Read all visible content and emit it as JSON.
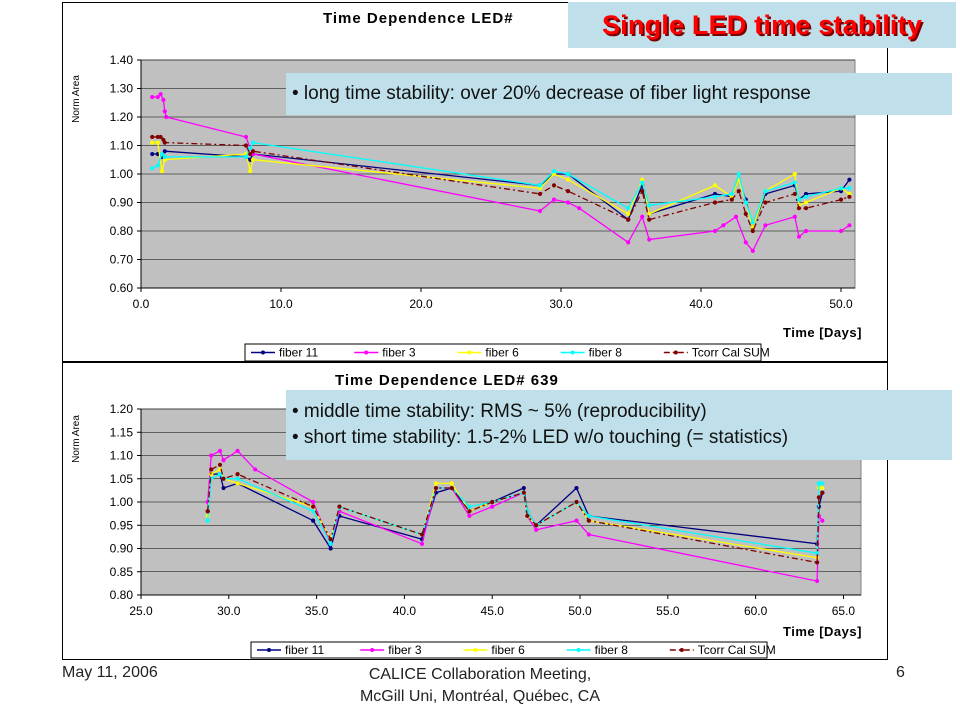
{
  "slide": {
    "banner": "Single LED time stability",
    "notes_top": [
      "• long time stability: over 20% decrease of fiber light response"
    ],
    "notes_bottom": [
      "• middle time stability: RMS ~ 5% (reproducibility)",
      "• short time stability: 1.5-2% LED w/o touching (= statistics)"
    ],
    "footer_left": "May 11, 2006",
    "footer_center_1": "CALICE Collaboration Meeting,",
    "footer_center_2": "McGill Uni,  Montréal, Québec, CA",
    "page_number": "6"
  },
  "chart_data": [
    {
      "type": "line",
      "title": "Time Dependence LED#",
      "xlabel": "Time [Days]",
      "ylabel": "Norm Area",
      "xlim": [
        0,
        51
      ],
      "ylim": [
        0.6,
        1.4
      ],
      "xticks": [
        "0.0",
        "10.0",
        "20.0",
        "30.0",
        "40.0",
        "50.0"
      ],
      "xtick_values": [
        0,
        10,
        20,
        30,
        40,
        50
      ],
      "yticks": [
        "0.60",
        "0.70",
        "0.80",
        "0.90",
        "1.00",
        "1.10",
        "1.20",
        "1.30",
        "1.40"
      ],
      "ytick_values": [
        0.6,
        0.7,
        0.8,
        0.9,
        1.0,
        1.1,
        1.2,
        1.3,
        1.4
      ],
      "plot_bg": "#c0c0c0",
      "grid": true,
      "legend_position": "bottom",
      "series": [
        {
          "name": "fiber 11",
          "color": "#000080",
          "dash": "",
          "points": [
            [
              0.8,
              1.07
            ],
            [
              1.2,
              1.07
            ],
            [
              1.5,
              1.06
            ],
            [
              1.7,
              1.08
            ],
            [
              7.5,
              1.06
            ],
            [
              7.8,
              1.05
            ],
            [
              8,
              1.07
            ],
            [
              28.5,
              0.96
            ],
            [
              29.5,
              1.0
            ],
            [
              30.5,
              1.0
            ],
            [
              34.8,
              0.84
            ],
            [
              35.8,
              0.96
            ],
            [
              36.3,
              0.86
            ],
            [
              41,
              0.93
            ],
            [
              42.2,
              0.92
            ],
            [
              42.7,
              0.98
            ],
            [
              43.2,
              0.91
            ],
            [
              43.7,
              0.81
            ],
            [
              44.6,
              0.93
            ],
            [
              46.7,
              0.96
            ],
            [
              47,
              0.91
            ],
            [
              47.5,
              0.93
            ],
            [
              50,
              0.94
            ],
            [
              50.6,
              0.98
            ]
          ]
        },
        {
          "name": "fiber 3",
          "color": "#ff00ff",
          "dash": "",
          "points": [
            [
              0.8,
              1.27
            ],
            [
              1.2,
              1.27
            ],
            [
              1.4,
              1.28
            ],
            [
              1.6,
              1.26
            ],
            [
              1.7,
              1.22
            ],
            [
              1.8,
              1.2
            ],
            [
              7.5,
              1.13
            ],
            [
              7.8,
              1.09
            ],
            [
              8,
              1.07
            ],
            [
              28.5,
              0.87
            ],
            [
              29.5,
              0.91
            ],
            [
              30.5,
              0.9
            ],
            [
              31.3,
              0.88
            ],
            [
              34.8,
              0.76
            ],
            [
              35.8,
              0.85
            ],
            [
              36.3,
              0.77
            ],
            [
              41,
              0.8
            ],
            [
              41.6,
              0.82
            ],
            [
              42.5,
              0.85
            ],
            [
              43.2,
              0.76
            ],
            [
              43.7,
              0.73
            ],
            [
              44.6,
              0.82
            ],
            [
              46.7,
              0.85
            ],
            [
              47,
              0.78
            ],
            [
              47.5,
              0.8
            ],
            [
              50,
              0.8
            ],
            [
              50.6,
              0.82
            ]
          ]
        },
        {
          "name": "fiber 6",
          "color": "#ffff00",
          "dash": "",
          "points": [
            [
              0.8,
              1.11
            ],
            [
              1.2,
              1.11
            ],
            [
              1.5,
              1.01
            ],
            [
              1.7,
              1.05
            ],
            [
              7.5,
              1.07
            ],
            [
              7.8,
              1.01
            ],
            [
              8,
              1.05
            ],
            [
              28.5,
              0.95
            ],
            [
              29.5,
              1.0
            ],
            [
              30.5,
              0.98
            ],
            [
              34.8,
              0.86
            ],
            [
              35.8,
              0.98
            ],
            [
              36.3,
              0.86
            ],
            [
              41,
              0.96
            ],
            [
              42.2,
              0.92
            ],
            [
              42.7,
              0.98
            ],
            [
              43.2,
              0.9
            ],
            [
              43.7,
              0.81
            ],
            [
              44.6,
              0.94
            ],
            [
              46.7,
              1.0
            ],
            [
              47,
              0.89
            ],
            [
              47.5,
              0.9
            ],
            [
              50,
              0.95
            ],
            [
              50.6,
              0.93
            ]
          ]
        },
        {
          "name": "fiber 8",
          "color": "#00ffff",
          "dash": "",
          "points": [
            [
              0.8,
              1.02
            ],
            [
              1.2,
              1.03
            ],
            [
              1.5,
              1.07
            ],
            [
              1.7,
              1.06
            ],
            [
              7.5,
              1.06
            ],
            [
              7.8,
              1.09
            ],
            [
              8,
              1.11
            ],
            [
              28.5,
              0.96
            ],
            [
              29.5,
              1.01
            ],
            [
              30.5,
              1.0
            ],
            [
              34.8,
              0.88
            ],
            [
              35.8,
              0.97
            ],
            [
              36.3,
              0.89
            ],
            [
              41,
              0.92
            ],
            [
              42.2,
              0.93
            ],
            [
              42.7,
              1.0
            ],
            [
              43.2,
              0.9
            ],
            [
              43.7,
              0.83
            ],
            [
              44.6,
              0.94
            ],
            [
              46.7,
              0.97
            ],
            [
              47,
              0.91
            ],
            [
              47.5,
              0.92
            ],
            [
              50,
              0.95
            ],
            [
              50.6,
              0.95
            ]
          ]
        },
        {
          "name": "Tcorr Cal SUM",
          "color": "#800000",
          "dash": "6 3 2 3",
          "points": [
            [
              0.8,
              1.13
            ],
            [
              1.2,
              1.13
            ],
            [
              1.4,
              1.13
            ],
            [
              1.6,
              1.12
            ],
            [
              1.7,
              1.11
            ],
            [
              7.5,
              1.1
            ],
            [
              7.8,
              1.07
            ],
            [
              8,
              1.08
            ],
            [
              28.5,
              0.93
            ],
            [
              29.5,
              0.96
            ],
            [
              30.5,
              0.94
            ],
            [
              34.8,
              0.84
            ],
            [
              35.8,
              0.94
            ],
            [
              36.3,
              0.84
            ],
            [
              41,
              0.9
            ],
            [
              42.2,
              0.91
            ],
            [
              42.7,
              0.94
            ],
            [
              43.2,
              0.86
            ],
            [
              43.7,
              0.8
            ],
            [
              44.6,
              0.9
            ],
            [
              46.7,
              0.93
            ],
            [
              47,
              0.88
            ],
            [
              47.5,
              0.88
            ],
            [
              50,
              0.91
            ],
            [
              50.6,
              0.92
            ]
          ]
        }
      ]
    },
    {
      "type": "line",
      "title": "Time Dependence LED# 639",
      "xlabel": "Time [Days]",
      "ylabel": "Norm Area",
      "xlim": [
        25,
        66
      ],
      "ylim": [
        0.8,
        1.2
      ],
      "xticks": [
        "25.0",
        "30.0",
        "35.0",
        "40.0",
        "45.0",
        "50.0",
        "55.0",
        "60.0",
        "65.0"
      ],
      "xtick_values": [
        25,
        30,
        35,
        40,
        45,
        50,
        55,
        60,
        65
      ],
      "yticks": [
        "0.80",
        "0.85",
        "0.90",
        "0.95",
        "1.00",
        "1.05",
        "1.10",
        "1.15",
        "1.20"
      ],
      "ytick_values": [
        0.8,
        0.85,
        0.9,
        0.95,
        1.0,
        1.05,
        1.1,
        1.15,
        1.2
      ],
      "plot_bg": "#c0c0c0",
      "grid": true,
      "legend_position": "bottom",
      "series": [
        {
          "name": "fiber 11",
          "color": "#000080",
          "dash": "",
          "points": [
            [
              28.8,
              0.98
            ],
            [
              29,
              1.06
            ],
            [
              29.5,
              1.06
            ],
            [
              29.7,
              1.03
            ],
            [
              30.5,
              1.04
            ],
            [
              34.8,
              0.96
            ],
            [
              35.8,
              0.9
            ],
            [
              36.3,
              0.97
            ],
            [
              41,
              0.92
            ],
            [
              41.8,
              1.02
            ],
            [
              42.7,
              1.03
            ],
            [
              43.7,
              0.98
            ],
            [
              45,
              1.0
            ],
            [
              46.8,
              1.03
            ],
            [
              47,
              0.98
            ],
            [
              47.5,
              0.95
            ],
            [
              49.8,
              1.03
            ],
            [
              50.5,
              0.97
            ],
            [
              63.5,
              0.91
            ],
            [
              63.6,
              0.99
            ],
            [
              63.8,
              1.02
            ]
          ]
        },
        {
          "name": "fiber 3",
          "color": "#ff00ff",
          "dash": "",
          "points": [
            [
              28.8,
              1.0
            ],
            [
              29,
              1.1
            ],
            [
              29.5,
              1.11
            ],
            [
              29.7,
              1.09
            ],
            [
              30.5,
              1.11
            ],
            [
              31.5,
              1.07
            ],
            [
              34.8,
              1.0
            ],
            [
              35.8,
              0.91
            ],
            [
              36.3,
              0.98
            ],
            [
              41,
              0.91
            ],
            [
              41.8,
              1.03
            ],
            [
              42.7,
              1.03
            ],
            [
              43.7,
              0.97
            ],
            [
              45,
              0.99
            ],
            [
              46.8,
              1.02
            ],
            [
              47,
              0.97
            ],
            [
              47.5,
              0.94
            ],
            [
              49.8,
              0.96
            ],
            [
              50.5,
              0.93
            ],
            [
              63.5,
              0.83
            ],
            [
              63.6,
              0.97
            ],
            [
              63.8,
              0.96
            ]
          ]
        },
        {
          "name": "fiber 6",
          "color": "#ffff00",
          "dash": "",
          "points": [
            [
              28.8,
              0.97
            ],
            [
              29,
              1.06
            ],
            [
              29.5,
              1.07
            ],
            [
              29.7,
              1.05
            ],
            [
              30.5,
              1.04
            ],
            [
              34.8,
              0.99
            ],
            [
              35.8,
              0.92
            ],
            [
              36.3,
              0.99
            ],
            [
              41,
              0.93
            ],
            [
              41.8,
              1.04
            ],
            [
              42.7,
              1.04
            ],
            [
              43.7,
              0.98
            ],
            [
              45,
              1.0
            ],
            [
              46.8,
              1.02
            ],
            [
              47,
              0.97
            ],
            [
              47.5,
              0.95
            ],
            [
              49.8,
              1.0
            ],
            [
              50.5,
              0.96
            ],
            [
              63.5,
              0.88
            ],
            [
              63.6,
              1.03
            ],
            [
              63.8,
              1.03
            ]
          ]
        },
        {
          "name": "fiber 8",
          "color": "#00ffff",
          "dash": "",
          "points": [
            [
              28.8,
              0.96
            ],
            [
              29,
              1.05
            ],
            [
              29.5,
              1.06
            ],
            [
              29.7,
              1.05
            ],
            [
              30.5,
              1.05
            ],
            [
              34.8,
              0.98
            ],
            [
              35.8,
              0.91
            ],
            [
              36.3,
              0.99
            ],
            [
              41,
              0.93
            ],
            [
              41.8,
              1.03
            ],
            [
              42.7,
              1.03
            ],
            [
              43.7,
              0.99
            ],
            [
              45,
              1.0
            ],
            [
              46.8,
              1.02
            ],
            [
              47,
              0.98
            ],
            [
              47.5,
              0.95
            ],
            [
              49.8,
              1.0
            ],
            [
              50.5,
              0.97
            ],
            [
              63.5,
              0.89
            ],
            [
              63.6,
              1.04
            ],
            [
              63.8,
              1.04
            ]
          ]
        },
        {
          "name": "Tcorr Cal SUM",
          "color": "#800000",
          "dash": "6 3 2 3",
          "points": [
            [
              28.8,
              0.98
            ],
            [
              29,
              1.07
            ],
            [
              29.5,
              1.08
            ],
            [
              29.7,
              1.05
            ],
            [
              30.5,
              1.06
            ],
            [
              34.8,
              0.99
            ],
            [
              35.8,
              0.92
            ],
            [
              36.3,
              0.99
            ],
            [
              41,
              0.93
            ],
            [
              41.8,
              1.03
            ],
            [
              42.7,
              1.03
            ],
            [
              43.7,
              0.98
            ],
            [
              45,
              1.0
            ],
            [
              46.8,
              1.02
            ],
            [
              47,
              0.97
            ],
            [
              47.5,
              0.95
            ],
            [
              49.8,
              1.0
            ],
            [
              50.5,
              0.96
            ],
            [
              63.5,
              0.87
            ],
            [
              63.6,
              1.01
            ],
            [
              63.8,
              1.02
            ]
          ]
        }
      ]
    }
  ]
}
